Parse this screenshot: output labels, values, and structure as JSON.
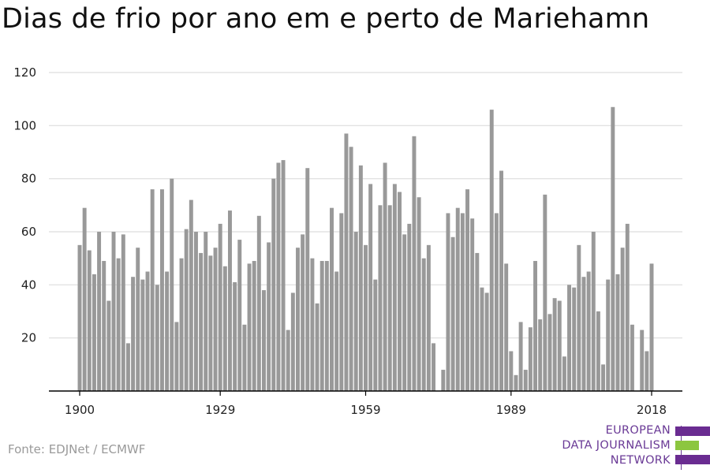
{
  "title": "Dias de frio por ano em e perto de Mariehamn",
  "source": "Fonte: EDJNet / ECMWF",
  "logo": {
    "lines": [
      "EUROPEAN",
      "DATA JOURNALISM",
      "NETWORK"
    ],
    "colors": {
      "purple": "#6a2c91",
      "green": "#8cc63f"
    }
  },
  "colors": {
    "bar": "#999999",
    "grid": "#dddddd",
    "axis": "#000000"
  },
  "chart_data": {
    "type": "bar",
    "title": "Dias de frio por ano em e perto de Mariehamn",
    "xlabel": "",
    "ylabel": "",
    "ylim": [
      0,
      120
    ],
    "y_ticks": [
      20,
      40,
      60,
      80,
      100,
      120
    ],
    "x_ticks": [
      1900,
      1929,
      1959,
      1989,
      2018
    ],
    "grid": true,
    "categories": [
      1900,
      1901,
      1902,
      1903,
      1904,
      1905,
      1906,
      1907,
      1908,
      1909,
      1910,
      1911,
      1912,
      1913,
      1914,
      1915,
      1916,
      1917,
      1918,
      1919,
      1920,
      1921,
      1922,
      1923,
      1924,
      1925,
      1926,
      1927,
      1928,
      1929,
      1930,
      1931,
      1932,
      1933,
      1934,
      1935,
      1936,
      1937,
      1938,
      1939,
      1940,
      1941,
      1942,
      1943,
      1944,
      1945,
      1946,
      1947,
      1948,
      1949,
      1950,
      1951,
      1952,
      1953,
      1954,
      1955,
      1956,
      1957,
      1958,
      1959,
      1960,
      1961,
      1962,
      1963,
      1964,
      1965,
      1966,
      1967,
      1968,
      1969,
      1970,
      1971,
      1972,
      1973,
      1974,
      1975,
      1976,
      1977,
      1978,
      1979,
      1980,
      1981,
      1982,
      1983,
      1984,
      1985,
      1986,
      1987,
      1988,
      1989,
      1990,
      1991,
      1992,
      1993,
      1994,
      1995,
      1996,
      1997,
      1998,
      1999,
      2000,
      2001,
      2002,
      2003,
      2004,
      2005,
      2006,
      2007,
      2008,
      2009,
      2010,
      2011,
      2012,
      2013,
      2014,
      2015,
      2016,
      2017,
      2018
    ],
    "values": [
      55,
      69,
      53,
      44,
      60,
      49,
      34,
      60,
      50,
      59,
      18,
      43,
      54,
      42,
      45,
      76,
      40,
      76,
      45,
      80,
      26,
      50,
      61,
      72,
      60,
      52,
      60,
      51,
      54,
      63,
      47,
      68,
      41,
      57,
      25,
      48,
      49,
      66,
      38,
      56,
      80,
      86,
      87,
      23,
      37,
      54,
      59,
      84,
      50,
      33,
      49,
      49,
      69,
      45,
      67,
      97,
      92,
      60,
      85,
      55,
      78,
      42,
      70,
      86,
      70,
      78,
      75,
      59,
      63,
      96,
      73,
      50,
      55,
      18,
      0,
      8,
      67,
      58,
      69,
      67,
      76,
      65,
      52,
      39,
      37,
      106,
      67,
      83,
      48,
      15,
      6,
      26,
      8,
      24,
      49,
      27,
      74,
      29,
      35,
      34,
      13,
      40,
      39,
      55,
      43,
      45,
      60,
      30,
      10,
      42,
      107,
      44,
      54,
      63,
      25,
      0,
      23,
      15,
      48
    ]
  }
}
